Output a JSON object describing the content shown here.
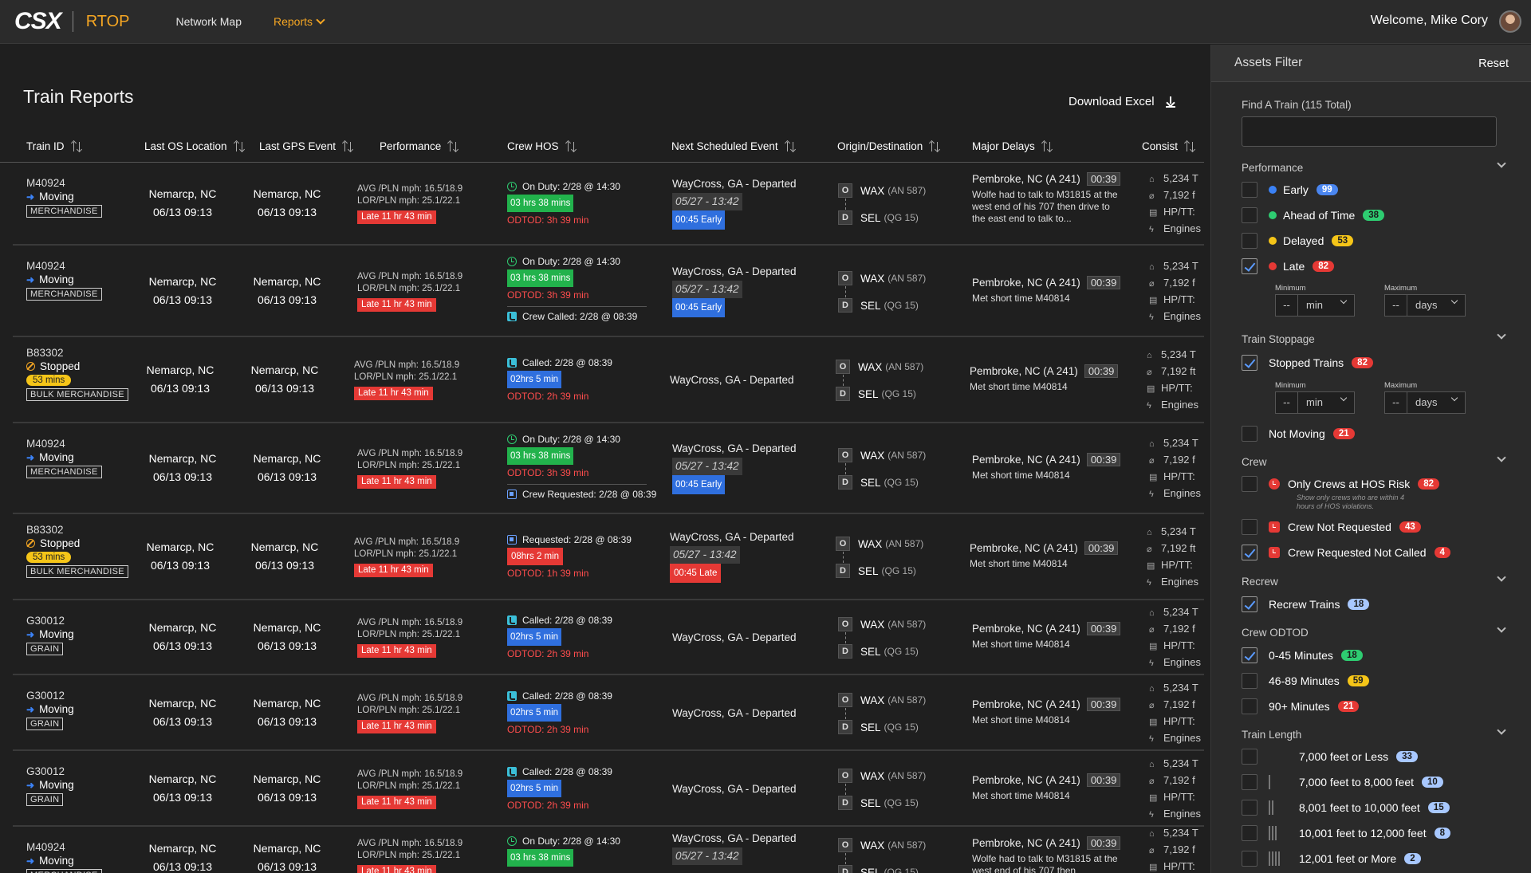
{
  "header": {
    "logo": "CSX",
    "app_name": "RTOP",
    "nav": [
      "Network Map",
      "Reports"
    ],
    "welcome": "Welcome, Mike Cory"
  },
  "main": {
    "title": "Train Reports",
    "download": "Download Excel",
    "columns": [
      "Train ID",
      "Last OS Location",
      "Last GPS Event",
      "Performance",
      "Crew HOS",
      "Next Scheduled Event",
      "Origin/Destination",
      "Major Delays",
      "Consist"
    ]
  },
  "rows": [
    {
      "id": "M40924",
      "status": "Moving",
      "stopped": false,
      "mins": "",
      "type": "MERCHANDISE",
      "os_loc": "Nemarcp, NC",
      "os_time": "06/13 09:13",
      "gps_loc": "Nemarcp, NC",
      "gps_time": "06/13 09:13",
      "perf1": "AVG /PLN mph: 16.5/18.9",
      "perf2": "LOR/PLN mph: 25.1/22.1",
      "late": "Late 11 hr 43 min",
      "crew_icon": "clock",
      "crew_main": "On Duty: 2/28 @ 14:30",
      "crew_tag": "03 hrs 38 mins",
      "crew_tag_color": "green",
      "odtod": "ODTOD: 3h 39 min",
      "crew_extra": "",
      "crew_extra_icon": "",
      "event": "WayCross, GA - Departed",
      "event_date": "05/27 - 13:42",
      "event_tag": "00:45 Early",
      "event_tag_color": "blue",
      "origin": "WAX",
      "origin_sub": "(AN  587)",
      "dest": "SEL",
      "dest_sub": "(QG  15)",
      "delay_loc": "Pembroke, NC (A 241)",
      "delay_time": "00:39",
      "delay_note": "Wolfe had to talk to M31815 at the west end of his 707 then drive to the east end to talk to...",
      "consist": [
        "5,234 T",
        "7,192 f",
        "HP/TT:",
        "Engines"
      ]
    },
    {
      "id": "M40924",
      "status": "Moving",
      "stopped": false,
      "mins": "",
      "type": "MERCHANDISE",
      "os_loc": "Nemarcp, NC",
      "os_time": "06/13 09:13",
      "gps_loc": "Nemarcp, NC",
      "gps_time": "06/13 09:13",
      "perf1": "AVG /PLN mph: 16.5/18.9",
      "perf2": "LOR/PLN mph: 25.1/22.1",
      "late": "Late 11 hr 43 min",
      "crew_icon": "clock",
      "crew_main": "On Duty: 2/28 @ 14:30",
      "crew_tag": "03 hrs 38 mins",
      "crew_tag_color": "green",
      "odtod": "ODTOD: 3h 39 min",
      "crew_extra": "Crew Called: 2/28 @ 08:39",
      "crew_extra_icon": "phone",
      "event": "WayCross, GA - Departed",
      "event_date": "05/27 - 13:42",
      "event_tag": "00:45 Early",
      "event_tag_color": "blue",
      "origin": "WAX",
      "origin_sub": "(AN  587)",
      "dest": "SEL",
      "dest_sub": "(QG  15)",
      "delay_loc": "Pembroke, NC (A 241)",
      "delay_time": "00:39",
      "delay_note": "Met short time M40814",
      "consist": [
        "5,234 T",
        "7,192 f",
        "HP/TT:",
        "Engines"
      ]
    },
    {
      "id": "B83302",
      "status": "Stopped",
      "stopped": true,
      "mins": "53 mins",
      "type": "BULK MERCHANDISE",
      "os_loc": "Nemarcp, NC",
      "os_time": "06/13 09:13",
      "gps_loc": "Nemarcp, NC",
      "gps_time": "06/13 09:13",
      "perf1": "AVG /PLN mph: 16.5/18.9",
      "perf2": "LOR/PLN mph: 25.1/22.1",
      "late": "Late 11 hr 43 min",
      "crew_icon": "phone",
      "crew_main": "Called: 2/28 @ 08:39",
      "crew_tag": "02hrs 5 min",
      "crew_tag_color": "blue",
      "odtod": "ODTOD: 2h 39 min",
      "crew_extra": "",
      "crew_extra_icon": "",
      "event": "WayCross, GA - Departed",
      "event_date": "",
      "event_tag": "",
      "event_tag_color": "",
      "origin": "WAX",
      "origin_sub": "(AN  587)",
      "dest": "SEL",
      "dest_sub": "(QG  15)",
      "delay_loc": "Pembroke, NC (A 241)",
      "delay_time": "00:39",
      "delay_note": "Met short time M40814",
      "consist": [
        "5,234 T",
        "7,192 ft",
        "HP/TT:",
        "Engines"
      ]
    },
    {
      "id": "M40924",
      "status": "Moving",
      "stopped": false,
      "mins": "",
      "type": "MERCHANDISE",
      "os_loc": "Nemarcp, NC",
      "os_time": "06/13 09:13",
      "gps_loc": "Nemarcp, NC",
      "gps_time": "06/13 09:13",
      "perf1": "AVG /PLN mph: 16.5/18.9",
      "perf2": "LOR/PLN mph: 25.1/22.1",
      "late": "Late 11 hr 43 min",
      "crew_icon": "clock",
      "crew_main": "On Duty: 2/28 @ 14:30",
      "crew_tag": "03 hrs 38 mins",
      "crew_tag_color": "green",
      "odtod": "ODTOD: 3h 39 min",
      "crew_extra": "Crew Requested: 2/28 @ 08:39",
      "crew_extra_icon": "req",
      "event": "WayCross, GA - Departed",
      "event_date": "05/27 - 13:42",
      "event_tag": "00:45 Early",
      "event_tag_color": "blue",
      "origin": "WAX",
      "origin_sub": "(AN  587)",
      "dest": "SEL",
      "dest_sub": "(QG  15)",
      "delay_loc": "Pembroke, NC (A 241)",
      "delay_time": "00:39",
      "delay_note": "Met short time M40814",
      "consist": [
        "5,234 T",
        "7,192 f",
        "HP/TT:",
        "Engines"
      ]
    },
    {
      "id": "B83302",
      "status": "Stopped",
      "stopped": true,
      "mins": "53 mins",
      "type": "BULK MERCHANDISE",
      "os_loc": "Nemarcp, NC",
      "os_time": "06/13 09:13",
      "gps_loc": "Nemarcp, NC",
      "gps_time": "06/13 09:13",
      "perf1": "AVG /PLN mph: 16.5/18.9",
      "perf2": "LOR/PLN mph: 25.1/22.1",
      "late": "Late 11 hr 43 min",
      "crew_icon": "req",
      "crew_main": "Requested: 2/28 @ 08:39",
      "crew_tag": "08hrs 2 min",
      "crew_tag_color": "red",
      "odtod": "ODTOD: 1h 39 min",
      "crew_extra": "",
      "crew_extra_icon": "",
      "event": "WayCross, GA - Departed",
      "event_date": "05/27 - 13:42",
      "event_tag": "00:45 Late",
      "event_tag_color": "red",
      "origin": "WAX",
      "origin_sub": "(AN  587)",
      "dest": "SEL",
      "dest_sub": "(QG  15)",
      "delay_loc": "Pembroke, NC (A 241)",
      "delay_time": "00:39",
      "delay_note": "Met short time M40814",
      "consist": [
        "5,234 T",
        "7,192 ft",
        "HP/TT:",
        "Engines"
      ]
    },
    {
      "id": "G30012",
      "status": "Moving",
      "stopped": false,
      "mins": "",
      "type": "GRAIN",
      "os_loc": "Nemarcp, NC",
      "os_time": "06/13 09:13",
      "gps_loc": "Nemarcp, NC",
      "gps_time": "06/13 09:13",
      "perf1": "AVG /PLN mph: 16.5/18.9",
      "perf2": "LOR/PLN mph: 25.1/22.1",
      "late": "Late 11 hr 43 min",
      "crew_icon": "phone",
      "crew_main": "Called: 2/28 @ 08:39",
      "crew_tag": "02hrs 5 min",
      "crew_tag_color": "blue",
      "odtod": "ODTOD: 2h 39 min",
      "crew_extra": "",
      "crew_extra_icon": "",
      "event": "WayCross, GA - Departed",
      "event_date": "",
      "event_tag": "",
      "event_tag_color": "",
      "origin": "WAX",
      "origin_sub": "(AN  587)",
      "dest": "SEL",
      "dest_sub": "(QG  15)",
      "delay_loc": "Pembroke, NC (A 241)",
      "delay_time": "00:39",
      "delay_note": "Met short time M40814",
      "consist": [
        "5,234 T",
        "7,192 f",
        "HP/TT:",
        "Engines"
      ]
    },
    {
      "id": "G30012",
      "status": "Moving",
      "stopped": false,
      "mins": "",
      "type": "GRAIN",
      "os_loc": "Nemarcp, NC",
      "os_time": "06/13 09:13",
      "gps_loc": "Nemarcp, NC",
      "gps_time": "06/13 09:13",
      "perf1": "AVG /PLN mph: 16.5/18.9",
      "perf2": "LOR/PLN mph: 25.1/22.1",
      "late": "Late 11 hr 43 min",
      "crew_icon": "phone",
      "crew_main": "Called: 2/28 @ 08:39",
      "crew_tag": "02hrs 5 min",
      "crew_tag_color": "blue",
      "odtod": "ODTOD: 2h 39 min",
      "crew_extra": "",
      "crew_extra_icon": "",
      "event": "WayCross, GA - Departed",
      "event_date": "",
      "event_tag": "",
      "event_tag_color": "",
      "origin": "WAX",
      "origin_sub": "(AN  587)",
      "dest": "SEL",
      "dest_sub": "(QG  15)",
      "delay_loc": "Pembroke, NC (A 241)",
      "delay_time": "00:39",
      "delay_note": "Met short time M40814",
      "consist": [
        "5,234 T",
        "7,192 f",
        "HP/TT:",
        "Engines"
      ]
    },
    {
      "id": "G30012",
      "status": "Moving",
      "stopped": false,
      "mins": "",
      "type": "GRAIN",
      "os_loc": "Nemarcp, NC",
      "os_time": "06/13 09:13",
      "gps_loc": "Nemarcp, NC",
      "gps_time": "06/13 09:13",
      "perf1": "AVG /PLN mph: 16.5/18.9",
      "perf2": "LOR/PLN mph: 25.1/22.1",
      "late": "Late 11 hr 43 min",
      "crew_icon": "phone",
      "crew_main": "Called: 2/28 @ 08:39",
      "crew_tag": "02hrs 5 min",
      "crew_tag_color": "blue",
      "odtod": "ODTOD: 2h 39 min",
      "crew_extra": "",
      "crew_extra_icon": "",
      "event": "WayCross, GA - Departed",
      "event_date": "",
      "event_tag": "",
      "event_tag_color": "",
      "origin": "WAX",
      "origin_sub": "(AN  587)",
      "dest": "SEL",
      "dest_sub": "(QG  15)",
      "delay_loc": "Pembroke, NC (A 241)",
      "delay_time": "00:39",
      "delay_note": "Met short time M40814",
      "consist": [
        "5,234 T",
        "7,192 f",
        "HP/TT:",
        "Engines"
      ]
    },
    {
      "id": "M40924",
      "status": "Moving",
      "stopped": false,
      "mins": "",
      "type": "MERCHANDISE",
      "os_loc": "Nemarcp, NC",
      "os_time": "06/13 09:13",
      "gps_loc": "Nemarcp, NC",
      "gps_time": "06/13 09:13",
      "perf1": "AVG /PLN mph: 16.5/18.9",
      "perf2": "LOR/PLN mph: 25.1/22.1",
      "late": "Late 11 hr 43 min",
      "crew_icon": "clock",
      "crew_main": "On Duty: 2/28 @ 14:30",
      "crew_tag": "03 hrs 38 mins",
      "crew_tag_color": "green",
      "odtod": "",
      "crew_extra": "",
      "crew_extra_icon": "",
      "event": "WayCross, GA - Departed",
      "event_date": "05/27 - 13:42",
      "event_tag": "",
      "event_tag_color": "",
      "origin": "WAX",
      "origin_sub": "(AN  587)",
      "dest": "SEL",
      "dest_sub": "(QG  15)",
      "delay_loc": "Pembroke, NC (A 241)",
      "delay_time": "00:39",
      "delay_note": "Wolfe had to talk to M31815 at the west end of his 707 then",
      "consist": [
        "5,234 T",
        "7,192 f",
        "HP/TT:",
        "Engines"
      ]
    }
  ],
  "sidebar": {
    "title": "Assets Filter",
    "reset": "Reset",
    "find_label": "Find A Train (115 Total)",
    "find_value": "",
    "minimum": "Minimum",
    "maximum": "Maximum",
    "dash": "--",
    "unit_min": "min",
    "unit_days": "days",
    "hos_note": "Show only crews who are within 4 hours of HOS violations.",
    "sections": {
      "performance": "Performance",
      "stoppage": "Train Stoppage",
      "crew": "Crew",
      "recrew": "Recrew",
      "odtod": "Crew ODTOD",
      "length": "Train Length"
    },
    "performance": [
      {
        "label": "Early",
        "count": "99",
        "checked": false,
        "dot": "#3b82f6",
        "badge": "blue"
      },
      {
        "label": "Ahead of Time",
        "count": "38",
        "checked": false,
        "dot": "#2ecc71",
        "badge": "green"
      },
      {
        "label": "Delayed",
        "count": "53",
        "checked": false,
        "dot": "#f5c518",
        "badge": "yellow"
      },
      {
        "label": "Late",
        "count": "82",
        "checked": true,
        "dot": "#e53935",
        "badge": "red"
      }
    ],
    "stoppage": [
      {
        "label": "Stopped Trains",
        "count": "82",
        "checked": true,
        "badge": "red"
      },
      {
        "label": "Not Moving",
        "count": "21",
        "checked": false,
        "badge": "red"
      }
    ],
    "crew": [
      {
        "label": "Only Crews at HOS Risk",
        "count": "82",
        "checked": false,
        "badge": "red"
      },
      {
        "label": "Crew Not Requested",
        "count": "43",
        "checked": false,
        "badge": "red"
      },
      {
        "label": "Crew Requested Not Called",
        "count": "4",
        "checked": true,
        "badge": "red"
      }
    ],
    "recrew": [
      {
        "label": "Recrew Trains",
        "count": "18",
        "checked": true,
        "badge": "lblue"
      }
    ],
    "odtod": [
      {
        "label": "0-45 Minutes",
        "count": "18",
        "checked": true,
        "badge": "green"
      },
      {
        "label": "46-89 Minutes",
        "count": "59",
        "checked": false,
        "badge": "yellow"
      },
      {
        "label": "90+ Minutes",
        "count": "21",
        "checked": false,
        "badge": "red"
      }
    ],
    "length": [
      {
        "label": "7,000 feet or Less",
        "count": "33",
        "checked": false,
        "bars": 0
      },
      {
        "label": "7,000 feet to 8,000 feet",
        "count": "10",
        "checked": false,
        "bars": 1
      },
      {
        "label": "8,001 feet to 10,000 feet",
        "count": "15",
        "checked": false,
        "bars": 2
      },
      {
        "label": "10,001 feet to 12,000 feet",
        "count": "8",
        "checked": false,
        "bars": 3
      },
      {
        "label": "12,001 feet or More",
        "count": "2",
        "checked": false,
        "bars": 4
      }
    ]
  }
}
